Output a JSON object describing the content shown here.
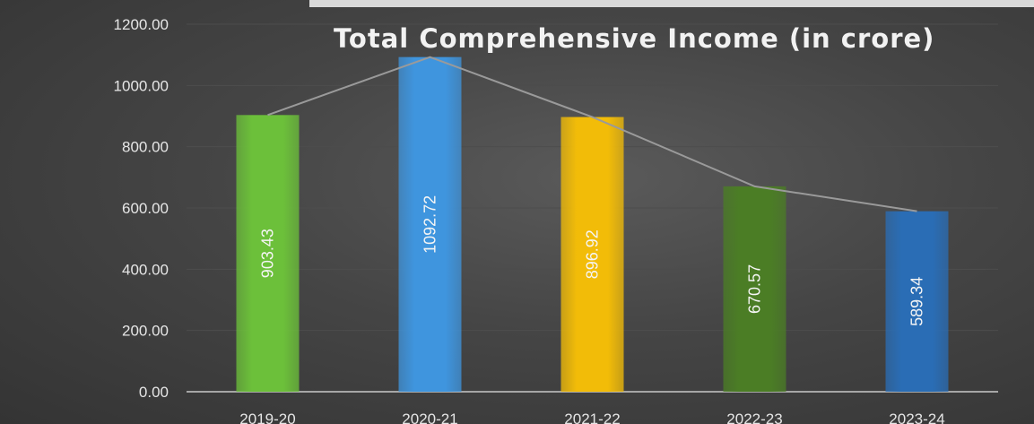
{
  "chart_data": {
    "type": "bar",
    "title": "Total Comprehensive Income (in crore)",
    "categories": [
      "2019-20",
      "2020-21",
      "2021-22",
      "2022-23",
      "2023-24"
    ],
    "values": [
      903.43,
      1092.72,
      896.92,
      670.57,
      589.34
    ],
    "data_labels": [
      "903.43",
      "1092.72",
      "896.92",
      "670.57",
      "589.34"
    ],
    "y_ticks": [
      "0.00",
      "200.00",
      "400.00",
      "600.00",
      "800.00",
      "1000.00",
      "1200.00"
    ],
    "ylim": [
      0,
      1200
    ],
    "grid": true,
    "trend_line": true,
    "xlabel": "",
    "ylabel": "",
    "colors": {
      "bars": [
        "#6cc03a",
        "#3f95de",
        "#f2bc08",
        "#4b7d25",
        "#2a6db5"
      ],
      "line": "#9a9a9a",
      "grid": "#4d4d4d",
      "axis": "#a6a6a6"
    }
  }
}
